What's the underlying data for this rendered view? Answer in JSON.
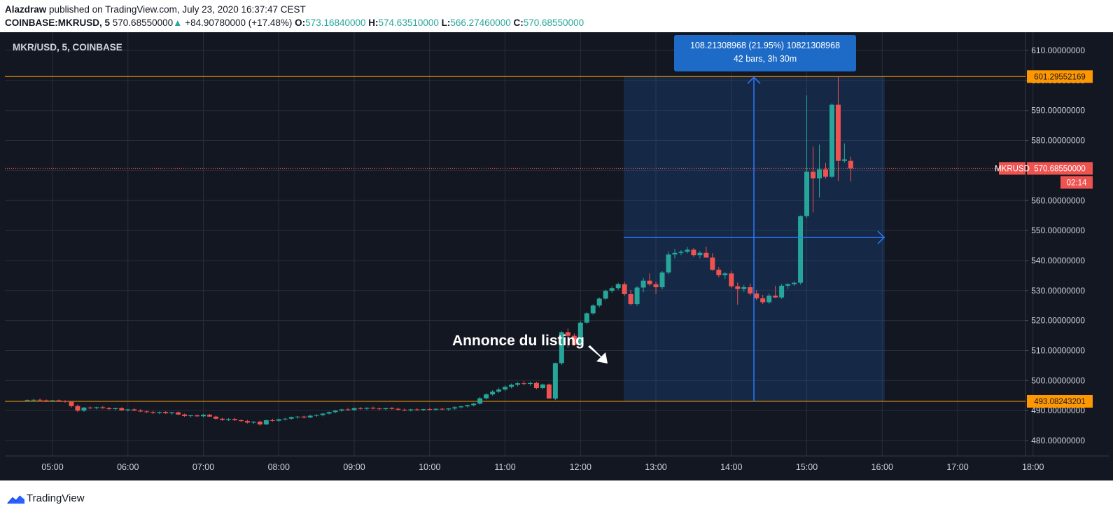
{
  "header": {
    "author": "Alazdraw",
    "published_text": "published on TradingView.com, July 23, 2020 16:37:47 CEST",
    "symbol_line": "COINBASE:MKRUSD, 5",
    "last_price": "570.68550000",
    "change": "+84.90780000 (+17.48%)",
    "open_label": "O:",
    "open": "573.16840000",
    "high_label": "H:",
    "high": "574.63510000",
    "low_label": "L:",
    "low": "566.27460000",
    "close_label": "C:",
    "close": "570.68550000"
  },
  "chart_title": "MKR/USD, 5, COINBASE",
  "annotation": "Annonce du listing",
  "measure": {
    "line1": "108.21308968 (21.95%) 10821308968",
    "line2": "42 bars, 3h 30m"
  },
  "price_labels": {
    "upper_line": "601.29552169",
    "lower_line": "493.08243201",
    "symbol": "MKRUSD",
    "current": "570.68550000",
    "countdown": "02:14"
  },
  "footer": {
    "brand": "TradingView"
  },
  "colors": {
    "up": "#26a69a",
    "down": "#ef5350",
    "accent": "#1e6bc7",
    "hline": "#ff9800"
  },
  "chart_data": {
    "type": "candlestick",
    "title": "MKR/USD, 5, COINBASE",
    "x_ticks": [
      "05:00",
      "06:00",
      "07:00",
      "08:00",
      "09:00",
      "10:00",
      "11:00",
      "12:00",
      "13:00",
      "14:00",
      "15:00",
      "16:00",
      "17:00",
      "18:00"
    ],
    "y_ticks": [
      "610.00000000",
      "600.00000000",
      "590.00000000",
      "580.00000000",
      "570.00000000",
      "560.00000000",
      "550.00000000",
      "540.00000000",
      "530.00000000",
      "520.00000000",
      "510.00000000",
      "500.00000000",
      "490.00000000",
      "480.00000000"
    ],
    "ylim": [
      474,
      613
    ],
    "horizontal_lines": [
      601.29552169,
      493.08243201
    ],
    "interval_minutes": 5,
    "x_range_hours": [
      4.5,
      18.5
    ],
    "start_hour": 4.5,
    "candles": [
      [
        493.4,
        493.7,
        493.1,
        493.5
      ],
      [
        493.5,
        493.9,
        493.2,
        493.6
      ],
      [
        493.6,
        494.0,
        493.3,
        493.4
      ],
      [
        493.4,
        493.7,
        492.9,
        493.3
      ],
      [
        493.3,
        493.6,
        493.0,
        493.4
      ],
      [
        493.4,
        493.7,
        493.0,
        493.2
      ],
      [
        493.2,
        493.5,
        492.6,
        492.9
      ],
      [
        492.9,
        493.2,
        491.0,
        491.5
      ],
      [
        491.5,
        492.0,
        489.5,
        490.0
      ],
      [
        490.0,
        491.2,
        489.6,
        491.0
      ],
      [
        491.0,
        491.4,
        490.5,
        490.8
      ],
      [
        490.8,
        491.3,
        490.4,
        491.1
      ],
      [
        491.1,
        491.5,
        490.6,
        490.8
      ],
      [
        490.8,
        491.2,
        490.2,
        490.5
      ],
      [
        490.5,
        491.0,
        490.1,
        490.8
      ],
      [
        490.8,
        491.1,
        489.9,
        490.1
      ],
      [
        490.1,
        490.6,
        489.7,
        490.4
      ],
      [
        490.4,
        490.8,
        489.8,
        490.0
      ],
      [
        490.0,
        490.5,
        489.5,
        489.7
      ],
      [
        489.7,
        490.1,
        489.2,
        489.5
      ],
      [
        489.5,
        489.9,
        488.9,
        489.2
      ],
      [
        489.2,
        489.7,
        488.8,
        489.5
      ],
      [
        489.5,
        489.8,
        488.9,
        489.1
      ],
      [
        489.1,
        489.6,
        488.6,
        489.4
      ],
      [
        489.4,
        489.7,
        488.4,
        488.7
      ],
      [
        488.7,
        489.0,
        487.9,
        488.2
      ],
      [
        488.2,
        488.6,
        487.7,
        488.4
      ],
      [
        488.4,
        488.8,
        487.9,
        488.1
      ],
      [
        488.1,
        488.9,
        487.8,
        488.6
      ],
      [
        488.6,
        488.9,
        487.9,
        488.0
      ],
      [
        488.0,
        488.3,
        486.9,
        487.3
      ],
      [
        487.3,
        487.6,
        486.6,
        486.9
      ],
      [
        486.9,
        487.5,
        486.5,
        487.2
      ],
      [
        487.2,
        487.6,
        486.5,
        486.8
      ],
      [
        486.8,
        487.1,
        486.2,
        486.5
      ],
      [
        486.5,
        486.9,
        485.7,
        486.0
      ],
      [
        486.0,
        486.5,
        485.5,
        486.3
      ],
      [
        486.3,
        486.7,
        485.0,
        485.4
      ],
      [
        485.4,
        487.0,
        485.2,
        486.8
      ],
      [
        486.8,
        487.3,
        486.3,
        486.6
      ],
      [
        486.6,
        487.4,
        486.2,
        487.1
      ],
      [
        487.1,
        487.6,
        486.7,
        487.3
      ],
      [
        487.3,
        488.0,
        487.0,
        487.8
      ],
      [
        487.8,
        488.2,
        487.3,
        488.0
      ],
      [
        488.0,
        488.3,
        487.4,
        487.7
      ],
      [
        487.7,
        488.6,
        487.5,
        488.3
      ],
      [
        488.3,
        488.8,
        487.9,
        488.5
      ],
      [
        488.5,
        489.2,
        488.1,
        489.0
      ],
      [
        489.0,
        489.7,
        488.7,
        489.5
      ],
      [
        489.5,
        490.2,
        489.1,
        490.0
      ],
      [
        490.0,
        490.6,
        489.6,
        490.4
      ],
      [
        490.4,
        490.9,
        489.9,
        490.2
      ],
      [
        490.2,
        491.0,
        489.9,
        490.8
      ],
      [
        490.8,
        491.2,
        490.3,
        490.6
      ],
      [
        490.6,
        491.1,
        490.2,
        490.9
      ],
      [
        490.9,
        491.3,
        490.4,
        490.7
      ],
      [
        490.7,
        491.0,
        490.2,
        490.5
      ],
      [
        490.5,
        490.9,
        490.1,
        490.8
      ],
      [
        490.8,
        491.2,
        490.3,
        490.6
      ],
      [
        490.6,
        490.9,
        490.0,
        490.3
      ],
      [
        490.3,
        490.7,
        489.8,
        490.1
      ],
      [
        490.1,
        490.6,
        489.7,
        490.4
      ],
      [
        490.4,
        490.8,
        489.9,
        490.2
      ],
      [
        490.2,
        490.6,
        489.8,
        490.5
      ],
      [
        490.5,
        490.9,
        490.0,
        490.3
      ],
      [
        490.3,
        490.7,
        489.9,
        490.6
      ],
      [
        490.6,
        490.9,
        490.1,
        490.4
      ],
      [
        490.4,
        490.8,
        489.9,
        490.7
      ],
      [
        490.7,
        491.4,
        490.3,
        491.1
      ],
      [
        491.1,
        491.7,
        490.7,
        491.4
      ],
      [
        491.4,
        492.0,
        491.0,
        491.8
      ],
      [
        491.8,
        492.6,
        491.4,
        492.3
      ],
      [
        492.3,
        494.5,
        492.0,
        494.1
      ],
      [
        494.1,
        495.8,
        493.7,
        495.4
      ],
      [
        495.4,
        496.8,
        495.0,
        496.3
      ],
      [
        496.3,
        497.6,
        495.9,
        497.0
      ],
      [
        497.0,
        498.4,
        496.5,
        497.9
      ],
      [
        497.9,
        499.0,
        497.4,
        498.6
      ],
      [
        498.6,
        499.5,
        498.1,
        499.1
      ],
      [
        499.1,
        499.8,
        498.4,
        498.9
      ],
      [
        498.9,
        499.6,
        498.3,
        499.2
      ],
      [
        499.2,
        499.6,
        497.1,
        497.5
      ],
      [
        497.5,
        499.0,
        497.1,
        498.7
      ],
      [
        498.7,
        499.0,
        495.0,
        494.0
      ],
      [
        494.0,
        506.0,
        493.5,
        505.8
      ],
      [
        505.8,
        516.5,
        505.2,
        516.1
      ],
      [
        516.1,
        517.3,
        511.0,
        514.9
      ],
      [
        514.9,
        515.7,
        511.6,
        511.9
      ],
      [
        511.9,
        519.8,
        511.4,
        519.3
      ],
      [
        519.3,
        522.8,
        518.9,
        522.4
      ],
      [
        522.4,
        525.4,
        521.9,
        525.0
      ],
      [
        525.0,
        527.7,
        524.4,
        527.3
      ],
      [
        527.3,
        530.3,
        526.8,
        529.9
      ],
      [
        529.9,
        531.4,
        529.2,
        530.8
      ],
      [
        530.8,
        532.6,
        530.2,
        532.1
      ],
      [
        532.1,
        532.9,
        528.2,
        528.8
      ],
      [
        528.8,
        530.2,
        525.0,
        525.5
      ],
      [
        525.5,
        531.5,
        524.9,
        531.0
      ],
      [
        531.0,
        534.2,
        529.4,
        533.3
      ],
      [
        533.3,
        535.7,
        531.6,
        532.1
      ],
      [
        532.1,
        533.0,
        528.8,
        531.1
      ],
      [
        531.1,
        536.5,
        530.4,
        536.0
      ],
      [
        536.0,
        543.0,
        535.4,
        542.0
      ],
      [
        542.0,
        543.8,
        540.7,
        542.6
      ],
      [
        542.6,
        543.5,
        541.8,
        542.9
      ],
      [
        542.9,
        544.5,
        542.3,
        543.6
      ],
      [
        543.6,
        544.2,
        541.2,
        541.8
      ],
      [
        541.8,
        543.2,
        540.7,
        542.6
      ],
      [
        542.6,
        544.6,
        542.1,
        541.0
      ],
      [
        541.0,
        542.5,
        536.6,
        536.9
      ],
      [
        536.9,
        537.8,
        534.4,
        535.1
      ],
      [
        535.1,
        536.2,
        533.9,
        535.7
      ],
      [
        535.7,
        536.5,
        530.9,
        531.4
      ],
      [
        531.4,
        532.7,
        525.3,
        530.5
      ],
      [
        530.5,
        531.9,
        529.5,
        531.1
      ],
      [
        531.1,
        532.3,
        528.4,
        529.0
      ],
      [
        529.0,
        530.2,
        526.8,
        527.4
      ],
      [
        527.4,
        528.6,
        525.5,
        526.1
      ],
      [
        526.1,
        529.0,
        525.6,
        528.3
      ],
      [
        528.3,
        531.6,
        527.5,
        527.7
      ],
      [
        527.7,
        532.2,
        527.2,
        531.6
      ],
      [
        531.6,
        532.4,
        530.5,
        532.1
      ],
      [
        532.1,
        533.0,
        531.6,
        532.6
      ],
      [
        532.6,
        555.0,
        532.0,
        554.8
      ],
      [
        554.8,
        595.0,
        554.2,
        569.6
      ],
      [
        569.6,
        578.0,
        556.0,
        567.4
      ],
      [
        567.4,
        578.6,
        561.0,
        570.4
      ],
      [
        570.4,
        572.5,
        567.3,
        567.9
      ],
      [
        567.9,
        592.4,
        567.5,
        591.9
      ],
      [
        591.9,
        601.3,
        566.5,
        573.2
      ],
      [
        573.2,
        579.0,
        572.6,
        573.7
      ],
      [
        573.2,
        574.6,
        566.3,
        570.7
      ]
    ]
  }
}
